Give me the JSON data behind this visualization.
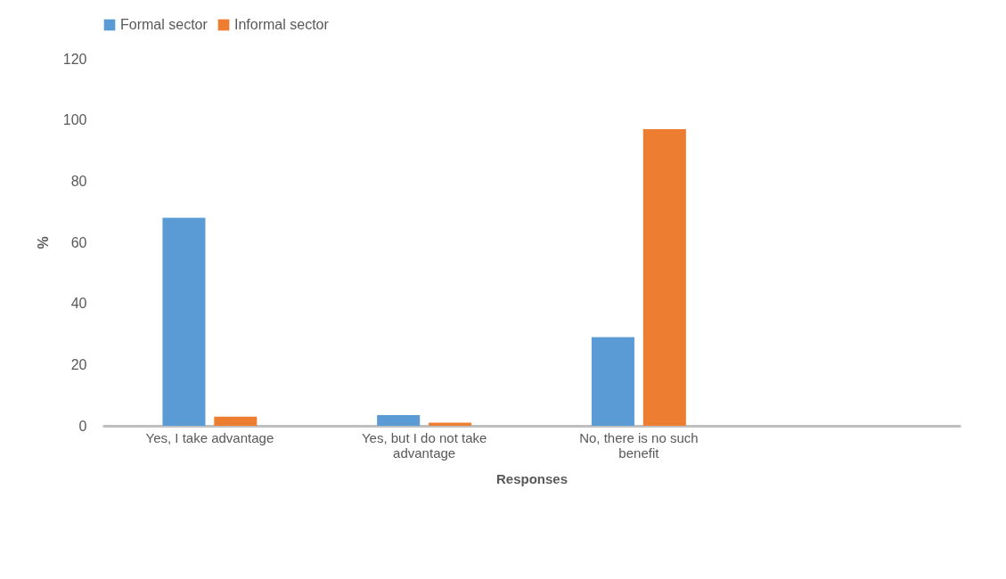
{
  "chart_data": {
    "type": "bar",
    "xlabel": "Responses",
    "ylabel": "%",
    "categories": [
      "Yes, I take advantage",
      "Yes, but I do not take advantage",
      "No, there is no such benefit",
      null
    ],
    "series": [
      {
        "name": "Formal sector",
        "color": "#5b9bd5",
        "values": [
          68,
          3.5,
          29,
          null
        ]
      },
      {
        "name": "Informal sector",
        "color": "#ed7d31",
        "values": [
          3,
          1,
          97,
          null
        ]
      }
    ],
    "ylim": [
      0,
      120
    ],
    "yticks": [
      0,
      20,
      40,
      60,
      80,
      100,
      120
    ],
    "grid": false,
    "legend": "top"
  }
}
